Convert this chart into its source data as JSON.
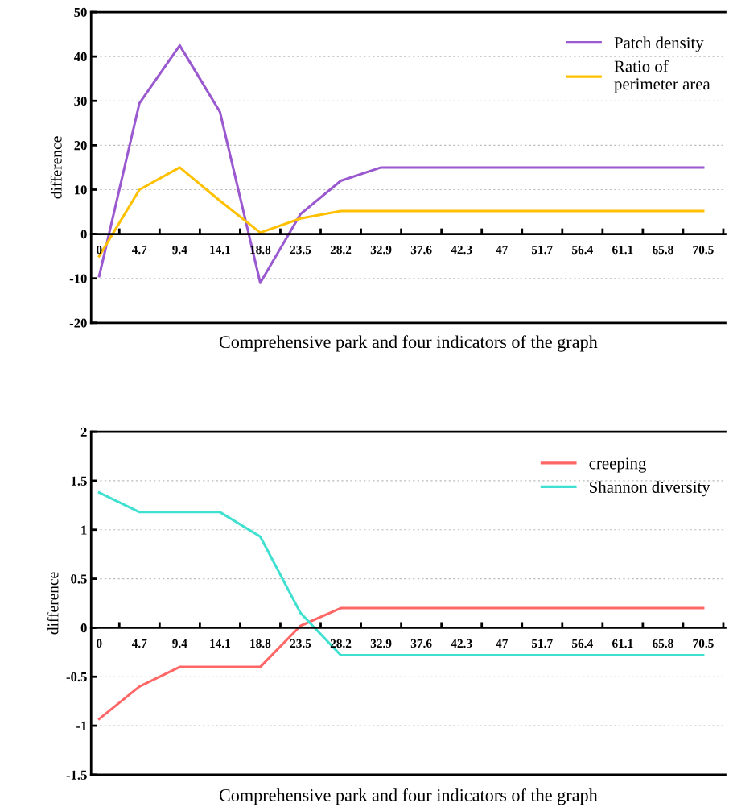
{
  "chart_data": [
    {
      "type": "line",
      "xlabel": "Comprehensive park and four indicators of the graph",
      "ylabel": "difference",
      "categories": [
        "0",
        "4.7",
        "9.4",
        "14.1",
        "18.8",
        "23.5",
        "28.2",
        "32.9",
        "37.6",
        "42.3",
        "47",
        "51.7",
        "56.4",
        "61.1",
        "65.8",
        "70.5"
      ],
      "series": [
        {
          "name": "Patch density",
          "color": "#9b59d0",
          "values": [
            -9.5,
            29.5,
            42.5,
            27.5,
            -11,
            4.5,
            12,
            15,
            15,
            15,
            15,
            15,
            15,
            15,
            15,
            15
          ]
        },
        {
          "name": "Ratio of\nperimeter area",
          "color": "#ffc000",
          "values": [
            -5,
            10,
            15,
            7.5,
            0.3,
            3.5,
            5.2,
            5.2,
            5.2,
            5.2,
            5.2,
            5.2,
            5.2,
            5.2,
            5.2,
            5.2
          ]
        }
      ],
      "ylim": [
        -20,
        50
      ],
      "yticks": [
        -20,
        -10,
        0,
        10,
        20,
        30,
        40,
        50
      ],
      "grid": "y",
      "legend": "top right"
    },
    {
      "type": "line",
      "xlabel": "Comprehensive park and four indicators of the graph",
      "ylabel": "difference",
      "categories": [
        "0",
        "4.7",
        "9.4",
        "14.1",
        "18.8",
        "23.5",
        "28.2",
        "32.9",
        "37.6",
        "42.3",
        "47",
        "51.7",
        "56.4",
        "61.1",
        "65.8",
        "70.5"
      ],
      "series": [
        {
          "name": "creeping",
          "color": "#ff6666",
          "values": [
            -0.93,
            -0.6,
            -0.4,
            -0.4,
            -0.4,
            0.02,
            0.2,
            0.2,
            0.2,
            0.2,
            0.2,
            0.2,
            0.2,
            0.2,
            0.2,
            0.2
          ]
        },
        {
          "name": "Shannon diversity",
          "color": "#40e0d0",
          "values": [
            1.38,
            1.18,
            1.18,
            1.18,
            0.93,
            0.15,
            -0.28,
            -0.28,
            -0.28,
            -0.28,
            -0.28,
            -0.28,
            -0.28,
            -0.28,
            -0.28,
            -0.28
          ]
        }
      ],
      "ylim": [
        -1.5,
        2
      ],
      "yticks": [
        -1.5,
        -1,
        -0.5,
        0,
        0.5,
        1,
        1.5,
        2
      ],
      "grid": "y",
      "legend": "top right"
    }
  ]
}
